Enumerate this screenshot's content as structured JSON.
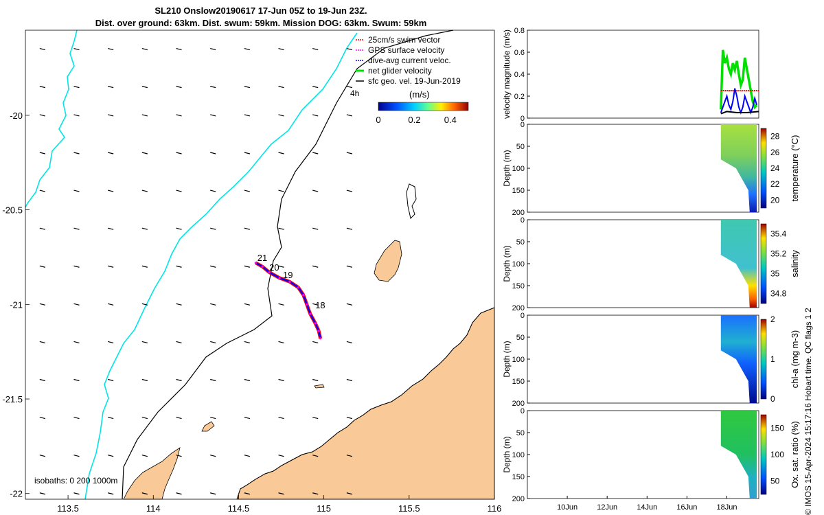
{
  "title": {
    "line1": "SL210 Onslow20190617 17-Jun 05Z to 19-Jun 23Z.",
    "line2": "Dist. over ground: 63km. Dist. swum: 59km. Mission DOG: 63km. Swum: 59km"
  },
  "sidenote": "© IMOS 15-Apr-2024 15:17:16 Hobart time. QC flags 1  2",
  "colors": {
    "land": "#f9c998",
    "isobath200": "#00e5e5",
    "coast_line": "#000000",
    "swim_vector": "#ff0000",
    "gps_velocity": "#ff00ff",
    "current_veloc": "#0000ff",
    "net_velocity": "#00e000",
    "sfc_geo": "#000000"
  },
  "chart_data": [
    {
      "type": "map",
      "xlim": [
        113.25,
        116
      ],
      "ylim": [
        -22.03,
        -19.55
      ],
      "x_ticks": [
        "113.5",
        "114",
        "114.5",
        "115",
        "115.5",
        "116"
      ],
      "y_ticks": [
        "-20",
        "-20.5",
        "-21",
        "-21.5",
        "-22"
      ],
      "legend": {
        "position": "top-right",
        "entries": [
          {
            "label": "25cm/s swim vector",
            "color": "#ff0000"
          },
          {
            "label": "GPS surface velocity",
            "color": "#ff00ff"
          },
          {
            "label": "dive-avg current veloc.",
            "color": "#0000ff"
          },
          {
            "label": "net glider velocity",
            "color": "#00e000"
          },
          {
            "label": "sfc geo. vel. 19-Jun-2019",
            "color": "#000000"
          }
        ],
        "extra_label": "4h"
      },
      "colorbar": {
        "title": "(m/s)",
        "ticks": [
          "0",
          "0.2",
          "0.4"
        ]
      },
      "isobaths_label": "isobaths: 0   200  1000m",
      "track_day_labels": [
        {
          "label": "21",
          "lon": 114.61,
          "lat": -20.77
        },
        {
          "label": "20",
          "lon": 114.68,
          "lat": -20.82
        },
        {
          "label": "19",
          "lon": 114.76,
          "lat": -20.86
        },
        {
          "label": "18",
          "lon": 114.95,
          "lat": -21.02
        }
      ],
      "track": [
        [
          114.98,
          -21.18
        ],
        [
          114.97,
          -21.14
        ],
        [
          114.95,
          -21.1
        ],
        [
          114.92,
          -21.05
        ],
        [
          114.9,
          -21.0
        ],
        [
          114.88,
          -20.95
        ],
        [
          114.85,
          -20.91
        ],
        [
          114.8,
          -20.88
        ],
        [
          114.74,
          -20.86
        ],
        [
          114.68,
          -20.83
        ],
        [
          114.64,
          -20.8
        ],
        [
          114.6,
          -20.78
        ]
      ],
      "vector_rows_lat": [
        -19.65,
        -19.85,
        -20.0,
        -20.2,
        -20.4,
        -20.6,
        -20.8,
        -21.0,
        -21.2,
        -21.4,
        -21.6,
        -21.8,
        -22.0
      ],
      "vector_cols_lon": [
        113.35,
        113.55,
        113.75,
        113.95,
        114.15,
        114.35,
        114.55,
        114.75,
        114.95,
        115.15
      ]
    },
    {
      "type": "line",
      "ylabel": "velocity magnitude (m/s)",
      "ylim": [
        0,
        0.8
      ],
      "y_ticks": [
        "0",
        "0.2",
        "0.4",
        "0.6",
        "0.8"
      ],
      "x_day_range": [
        8,
        19.6
      ],
      "series": [
        {
          "key": "net glider velocity",
          "color": "#00e000",
          "x": [
            17.7,
            17.8,
            17.9,
            18.0,
            18.1,
            18.2,
            18.3,
            18.4,
            18.5,
            18.6,
            18.7,
            18.8,
            18.9,
            19.0,
            19.1,
            19.2,
            19.3,
            19.4,
            19.5
          ],
          "y": [
            0.08,
            0.62,
            0.5,
            0.55,
            0.45,
            0.4,
            0.5,
            0.44,
            0.52,
            0.4,
            0.3,
            0.35,
            0.55,
            0.45,
            0.35,
            0.25,
            0.15,
            0.1,
            0.12
          ]
        },
        {
          "key": "swim vector",
          "color": "#ff0000",
          "x": [
            17.7,
            19.6
          ],
          "y": [
            0.25,
            0.25
          ]
        },
        {
          "key": "dive-avg current veloc.",
          "color": "#0000ff",
          "x": [
            17.7,
            17.8,
            17.9,
            18.0,
            18.1,
            18.2,
            18.3,
            18.4,
            18.5,
            18.6,
            18.7,
            18.8,
            18.9,
            19.0,
            19.1,
            19.2,
            19.3,
            19.4,
            19.5
          ],
          "y": [
            0.05,
            0.1,
            0.15,
            0.2,
            0.12,
            0.08,
            0.15,
            0.27,
            0.2,
            0.1,
            0.05,
            0.1,
            0.2,
            0.15,
            0.1,
            0.05,
            0.1,
            0.18,
            0.12
          ]
        },
        {
          "key": "sfc geo. vel.",
          "color": "#000000",
          "x": [
            17.7,
            18.0,
            18.5,
            19.0,
            19.6
          ],
          "y": [
            0.04,
            0.06,
            0.05,
            0.05,
            0.06
          ]
        }
      ]
    },
    {
      "type": "heatmap",
      "ylabel": "Depth (m)",
      "clabel": "temperature (°C)",
      "y_ticks": [
        "0",
        "50",
        "100",
        "150",
        "200"
      ],
      "c_ticks": [
        "20",
        "22",
        "24",
        "26",
        "28"
      ],
      "clim": [
        19,
        29
      ]
    },
    {
      "type": "heatmap",
      "ylabel": "Depth (m)",
      "clabel": "salinity",
      "y_ticks": [
        "0",
        "50",
        "100",
        "150",
        "200"
      ],
      "c_ticks": [
        "34.8",
        "35",
        "35.2",
        "35.4"
      ],
      "clim": [
        34.7,
        35.5
      ]
    },
    {
      "type": "heatmap",
      "ylabel": "Depth (m)",
      "clabel": "chl-a (mg m-3)",
      "y_ticks": [
        "0",
        "50",
        "100",
        "150",
        "200"
      ],
      "c_ticks": [
        "0",
        "1",
        "2"
      ],
      "clim": [
        0,
        2
      ]
    },
    {
      "type": "heatmap",
      "ylabel": "Depth (m)",
      "clabel": "Ox. sat. ratio (%)",
      "y_ticks": [
        "0",
        "50",
        "100",
        "150",
        "200"
      ],
      "c_ticks": [
        "50",
        "100",
        "150"
      ],
      "clim": [
        25,
        175
      ],
      "x_ticks": [
        "10Jun",
        "12Jun",
        "14Jun",
        "16Jun",
        "18Jun"
      ]
    }
  ]
}
